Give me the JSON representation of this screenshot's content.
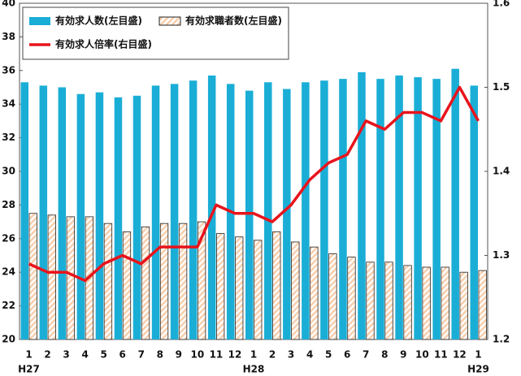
{
  "chart_data": {
    "type": "bar-line",
    "categories": [
      "1",
      "2",
      "3",
      "4",
      "5",
      "6",
      "7",
      "8",
      "9",
      "10",
      "11",
      "12",
      "1",
      "2",
      "3",
      "4",
      "5",
      "6",
      "7",
      "8",
      "9",
      "10",
      "11",
      "12",
      "1"
    ],
    "categories2": [
      "H27",
      null,
      null,
      null,
      null,
      null,
      null,
      null,
      null,
      null,
      null,
      null,
      "H28",
      null,
      null,
      null,
      null,
      null,
      null,
      null,
      null,
      null,
      null,
      null,
      "H29"
    ],
    "series": [
      {
        "name": "有効求人数(左目盛)",
        "type": "bar",
        "color": "#1aaed6",
        "values": [
          35.3,
          35.1,
          35.0,
          34.6,
          34.7,
          34.4,
          34.5,
          35.1,
          35.2,
          35.4,
          35.7,
          35.2,
          34.8,
          35.3,
          34.9,
          35.3,
          35.4,
          35.5,
          35.9,
          35.5,
          35.7,
          35.6,
          35.5,
          36.1,
          35.1
        ]
      },
      {
        "name": "有効求職者数(左目盛)",
        "type": "bar",
        "color": "#f7cfae",
        "hatch": true,
        "values": [
          27.5,
          27.4,
          27.3,
          27.3,
          26.9,
          26.4,
          26.7,
          26.9,
          26.9,
          27.0,
          26.3,
          26.1,
          25.9,
          26.4,
          25.8,
          25.5,
          25.1,
          24.9,
          24.6,
          24.6,
          24.4,
          24.3,
          24.3,
          24.0,
          24.1
        ]
      },
      {
        "name": "有効求人倍率(右目盛)",
        "type": "line",
        "axis": "y2",
        "color": "#e8141c",
        "values": [
          1.29,
          1.28,
          1.28,
          1.27,
          1.29,
          1.3,
          1.29,
          1.31,
          1.31,
          1.31,
          1.36,
          1.35,
          1.35,
          1.34,
          1.36,
          1.39,
          1.41,
          1.42,
          1.46,
          1.45,
          1.47,
          1.47,
          1.46,
          1.5,
          1.46
        ]
      }
    ],
    "ylim": [
      20,
      40
    ],
    "yticks": [
      20,
      22,
      24,
      26,
      28,
      30,
      32,
      34,
      36,
      38,
      40
    ],
    "y2lim": [
      1.2,
      1.6
    ],
    "y2ticks": [
      1.2,
      1.3,
      1.4,
      1.5,
      1.6
    ]
  }
}
